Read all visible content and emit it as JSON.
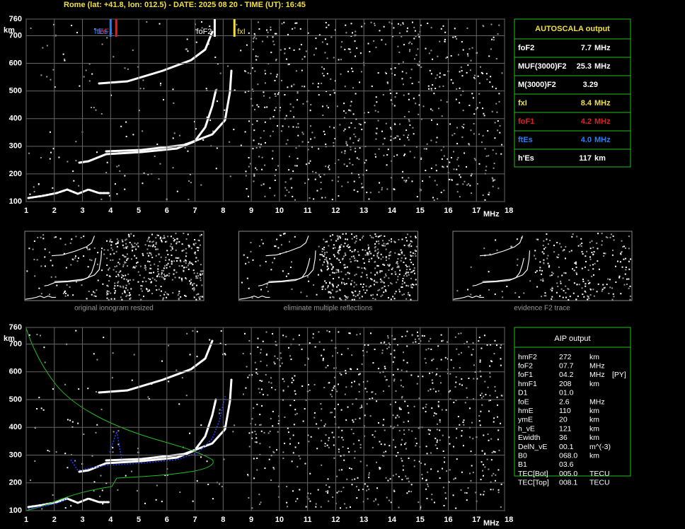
{
  "header": {
    "title": "Rome (lat: +41.8, lon: 012.5) - DATE: 2025 08 20 - TIME (UT): 16:45"
  },
  "axes": {
    "y_unit": "km",
    "x_unit": "MHz",
    "xlim": [
      1,
      18
    ],
    "ylim": [
      100,
      760
    ],
    "xticks": [
      1,
      2,
      3,
      4,
      5,
      6,
      7,
      8,
      9,
      10,
      11,
      12,
      13,
      14,
      15,
      16,
      17,
      18
    ],
    "yticks": [
      100,
      200,
      300,
      400,
      500,
      600,
      700,
      760
    ]
  },
  "autoscala": {
    "title": "AUTOSCALA output",
    "rows": [
      {
        "label": "foF2",
        "value": "7.7",
        "unit": "MHz",
        "color": "#ffffff"
      },
      {
        "label": "MUF(3000)F2",
        "value": "25.3",
        "unit": "MHz",
        "color": "#ffffff"
      },
      {
        "label": "M(3000)F2",
        "value": "3.29",
        "color": "#ffffff"
      },
      {
        "label": "fxI",
        "value": "8.4",
        "unit": "MHz",
        "color": "#f0e040"
      },
      {
        "label": "foF1",
        "value": "4.2",
        "unit": "MHz",
        "color": "#e02020"
      },
      {
        "label": "ftEs",
        "value": "4.0",
        "unit": "MHz",
        "color": "#2080ff"
      },
      {
        "label": "h'Es",
        "value": "117",
        "unit": "km",
        "color": "#ffffff"
      }
    ]
  },
  "thumbnails": [
    {
      "caption": "original ionogram resized"
    },
    {
      "caption": "eliminate multiple reflections"
    },
    {
      "caption": "evidence F2 trace"
    }
  ],
  "aip": {
    "title": "AIP output",
    "rows": [
      [
        "hmF2",
        "272",
        "km"
      ],
      [
        "foF2",
        "07.7",
        "MHz"
      ],
      [
        "foF1",
        "04.2",
        "MHz",
        "[PY]"
      ],
      [
        "hmF1",
        "208",
        "km"
      ],
      [
        "D1",
        "01.0"
      ],
      [
        "foE",
        "2.6",
        "MHz"
      ],
      [
        "hmE",
        "110",
        "km"
      ],
      [
        "ymE",
        "20",
        "km"
      ],
      [
        "h_vE",
        "121",
        "km"
      ],
      [
        "Ewidth",
        "36",
        "km"
      ],
      [
        "DelN_vE",
        "00.1",
        "m^(-3)"
      ],
      [
        "B0",
        "068.0",
        "km"
      ],
      [
        "B1",
        "03.6"
      ],
      [
        "TEC[Bot]",
        "005.0",
        "TECU"
      ],
      [
        "TEC[Top]",
        "008.1",
        "TECU"
      ]
    ]
  }
}
